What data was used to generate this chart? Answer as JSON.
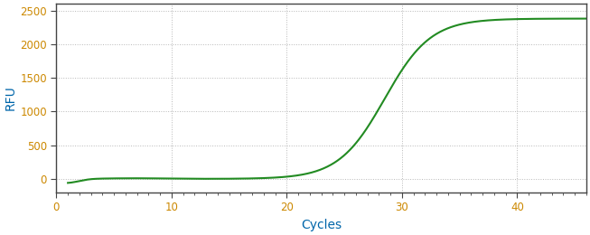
{
  "xlabel": "Cycles",
  "ylabel": "RFU",
  "line_color": "#228B22",
  "line_width": 1.5,
  "background_color": "#ffffff",
  "plot_bg_color": "#ffffff",
  "grid_color": "#888888",
  "xlim": [
    0,
    46
  ],
  "ylim": [
    -200,
    2600
  ],
  "xticks": [
    0,
    10,
    20,
    30,
    40
  ],
  "yticks": [
    0,
    500,
    1000,
    1500,
    2000,
    2500
  ],
  "tick_label_color": "#CC8800",
  "axis_label_color": "#0066AA",
  "sigmoid_L": 2380,
  "sigmoid_k": 0.5,
  "sigmoid_x0": 28.5,
  "x_start": 1,
  "x_end": 46
}
